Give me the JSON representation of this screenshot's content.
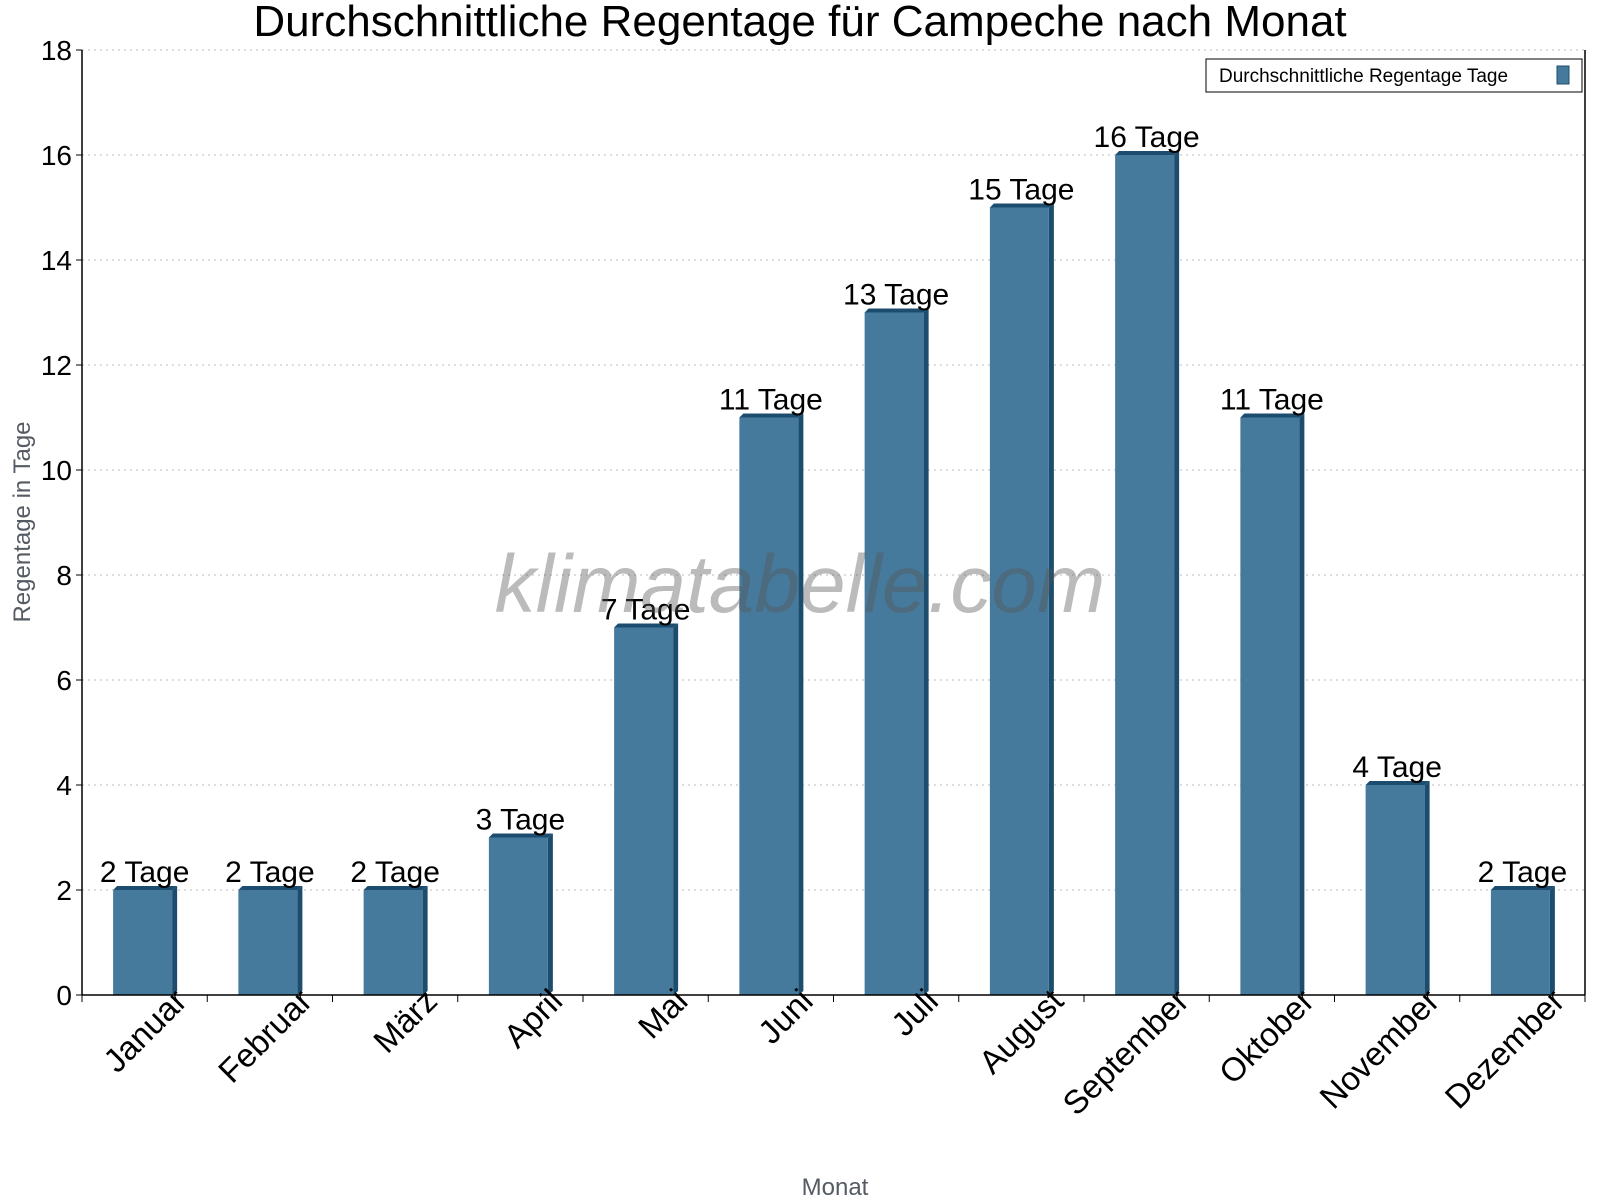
{
  "chart_data": {
    "type": "bar",
    "title": "Durchschnittliche Regentage für Campeche nach Monat",
    "xlabel": "Monat",
    "ylabel": "Regentage in Tage",
    "categories": [
      "Januar",
      "Februar",
      "März",
      "April",
      "Mai",
      "Juni",
      "Juli",
      "August",
      "September",
      "Oktober",
      "November",
      "Dezember"
    ],
    "series": [
      {
        "name": "Durchschnittliche Regentage Tage",
        "values": [
          2,
          2,
          2,
          3,
          7,
          11,
          13,
          15,
          16,
          11,
          4,
          2
        ],
        "color": "#467a9c",
        "side_color": "#1c4d6e"
      }
    ],
    "data_labels": [
      "2 Tage",
      "2 Tage",
      "2 Tage",
      "3 Tage",
      "7 Tage",
      "11 Tage",
      "13 Tage",
      "15 Tage",
      "16 Tage",
      "11 Tage",
      "4 Tage",
      "2 Tage"
    ],
    "ylim": [
      0,
      18
    ],
    "yticks": [
      0,
      2,
      4,
      6,
      8,
      10,
      12,
      14,
      16,
      18
    ],
    "grid": true,
    "legend_position": "top-right",
    "watermark": "klimatabelle.com"
  }
}
